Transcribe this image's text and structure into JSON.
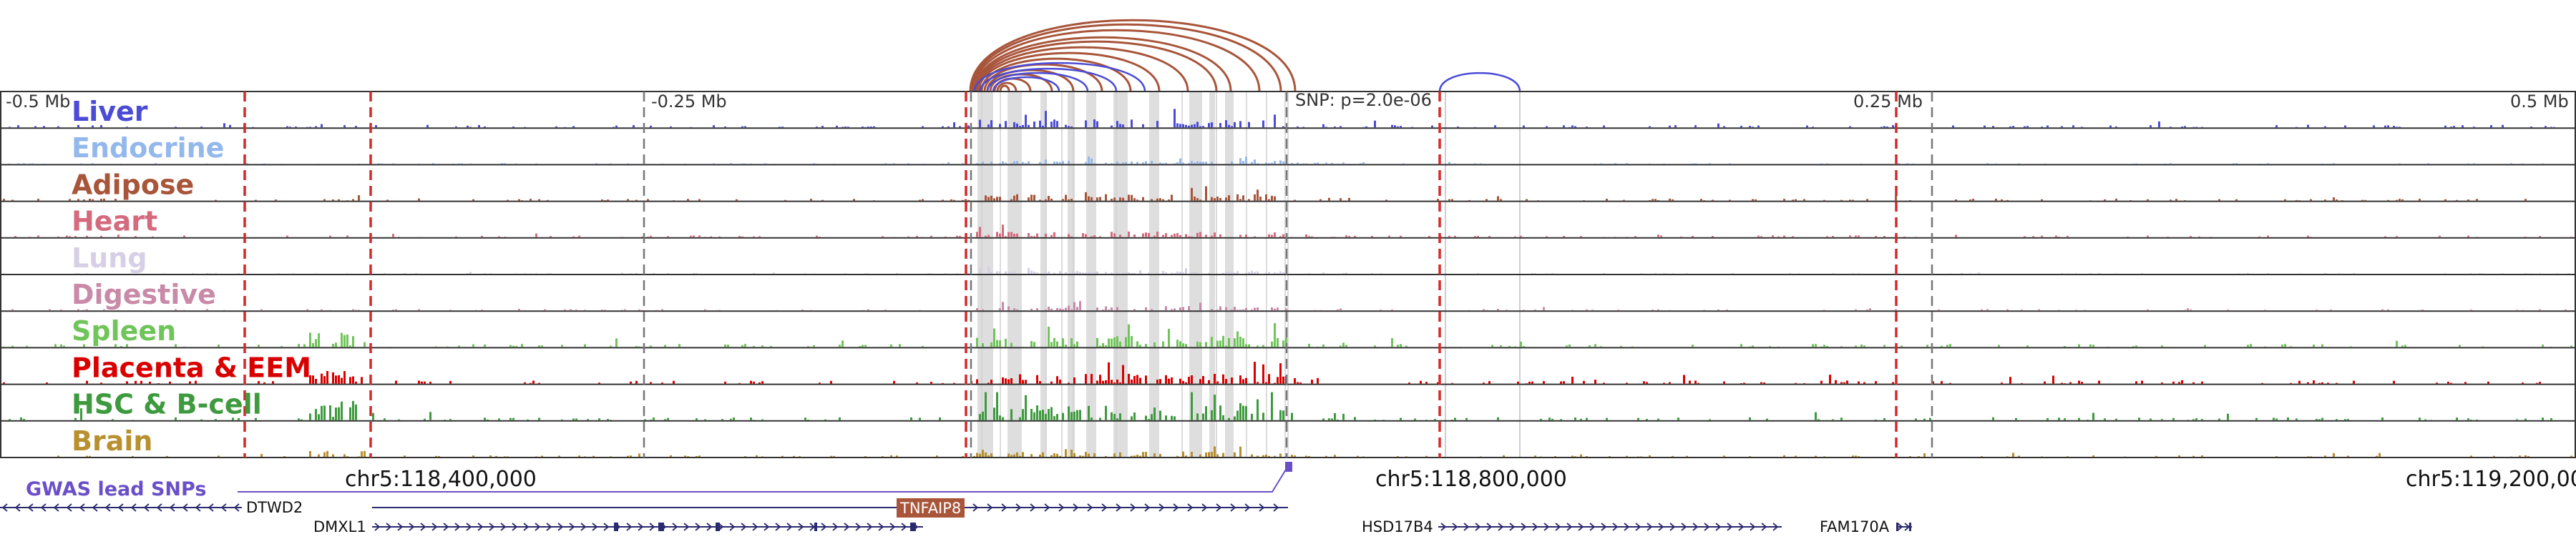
{
  "ruler": {
    "left_label": "-0.5 Mb",
    "mid_left_label": "-0.25 Mb",
    "mid_right_label": "0.25 Mb",
    "right_label": "0.5 Mb",
    "snp_label": "SNP: p=2.0e-06"
  },
  "tracks": [
    {
      "name": "Liver",
      "color": "#4b4bd6",
      "signal": 1.0
    },
    {
      "name": "Endocrine",
      "color": "#93b8ec",
      "signal": 0.35
    },
    {
      "name": "Adipose",
      "color": "#a8553a",
      "signal": 0.8
    },
    {
      "name": "Heart",
      "color": "#d46a7e",
      "signal": 0.7
    },
    {
      "name": "Lung",
      "color": "#d6cfe6",
      "signal": 0.3
    },
    {
      "name": "Digestive",
      "color": "#c98aa8",
      "signal": 0.5
    },
    {
      "name": "Spleen",
      "color": "#6fc45a",
      "signal": 1.5
    },
    {
      "name": "Placenta & EEM",
      "color": "#d90000",
      "signal": 1.3
    },
    {
      "name": "HSC & B-cell",
      "color": "#3e9a3e",
      "signal": 2.0
    },
    {
      "name": "Brain",
      "color": "#b8902e",
      "signal": 0.6
    }
  ],
  "coordinates": {
    "left": "chr5:118,400,000",
    "mid": "chr5:118,800,000",
    "right": "chr5:119,200,000"
  },
  "gwas": {
    "label": "GWAS lead SNPs",
    "color": "#6a4fc8"
  },
  "genes": [
    {
      "name": "DTWD2",
      "strand": "-"
    },
    {
      "name": "DMXL1",
      "strand": "+"
    },
    {
      "name": "TNFAIP8",
      "strand": "+",
      "highlight": true,
      "highlight_color": "#a8553a"
    },
    {
      "name": "HSD17B4",
      "strand": "+"
    },
    {
      "name": "FAM170A",
      "strand": "+"
    }
  ],
  "colors": {
    "arc_primary": "#a8553a",
    "arc_secondary": "#4b4bd6",
    "guide_red": "#d42a2a",
    "guide_gray": "#777777",
    "gene_line": "#2a2a6e"
  }
}
